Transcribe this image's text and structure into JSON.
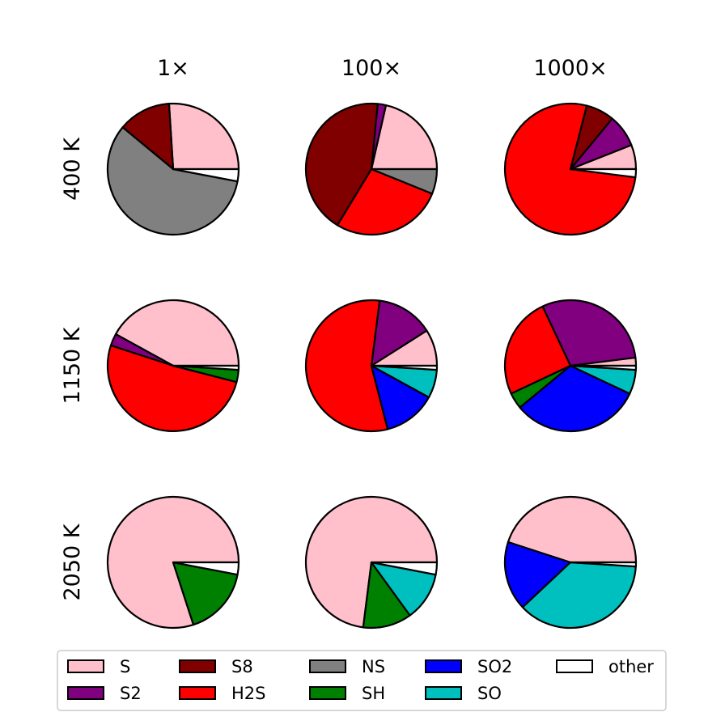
{
  "chart_data": {
    "type": "pie",
    "column_labels": [
      "1×",
      "100×",
      "1000×"
    ],
    "row_labels": [
      "400 K",
      "1150 K",
      "2050 K"
    ],
    "species": [
      {
        "name": "S",
        "color": "#ffc0cb"
      },
      {
        "name": "S2",
        "color": "#800080"
      },
      {
        "name": "S8",
        "color": "#800000"
      },
      {
        "name": "H2S",
        "color": "#ff0000"
      },
      {
        "name": "NS",
        "color": "#808080"
      },
      {
        "name": "SH",
        "color": "#008000"
      },
      {
        "name": "SO2",
        "color": "#0000ff"
      },
      {
        "name": "SO",
        "color": "#00bfbf"
      },
      {
        "name": "other",
        "color": "#ffffff"
      }
    ],
    "legend_placement": "bottom",
    "pies": [
      [
        {
          "S": 0.26,
          "S2": 0,
          "S8": 0.13,
          "H2S": 0,
          "NS": 0.58,
          "SH": 0,
          "SO2": 0,
          "SO": 0,
          "other": 0.03
        },
        {
          "S": 0.21,
          "S2": 0.02,
          "S8": 0.42,
          "H2S": 0.27,
          "NS": 0.06,
          "SH": 0,
          "SO2": 0,
          "SO": 0,
          "other": 0.0
        },
        {
          "S": 0.06,
          "S2": 0.08,
          "S8": 0.07,
          "H2S": 0.77,
          "NS": 0,
          "SH": 0,
          "SO2": 0,
          "SO": 0,
          "other": 0.02
        }
      ],
      [
        {
          "S": 0.42,
          "S2": 0.03,
          "S8": 0,
          "H2S": 0.51,
          "NS": 0,
          "SH": 0.03,
          "SO2": 0,
          "SO": 0,
          "other": 0.01
        },
        {
          "S": 0.09,
          "S2": 0.14,
          "S8": 0,
          "H2S": 0.56,
          "NS": 0,
          "SH": 0,
          "SO2": 0.13,
          "SO": 0.07,
          "other": 0.01
        },
        {
          "S": 0.02,
          "S2": 0.3,
          "S8": 0,
          "H2S": 0.25,
          "NS": 0,
          "SH": 0.04,
          "SO2": 0.32,
          "SO": 0.06,
          "other": 0.01
        }
      ],
      [
        {
          "S": 0.8,
          "S2": 0,
          "S8": 0,
          "H2S": 0,
          "NS": 0,
          "SH": 0.17,
          "SO2": 0,
          "SO": 0,
          "other": 0.03
        },
        {
          "S": 0.73,
          "S2": 0,
          "S8": 0,
          "H2S": 0,
          "NS": 0,
          "SH": 0.12,
          "SO2": 0,
          "SO": 0.12,
          "other": 0.03
        },
        {
          "S": 0.45,
          "S2": 0,
          "S8": 0,
          "H2S": 0,
          "NS": 0,
          "SH": 0,
          "SO2": 0.17,
          "SO": 0.37,
          "other": 0.01
        }
      ]
    ]
  }
}
